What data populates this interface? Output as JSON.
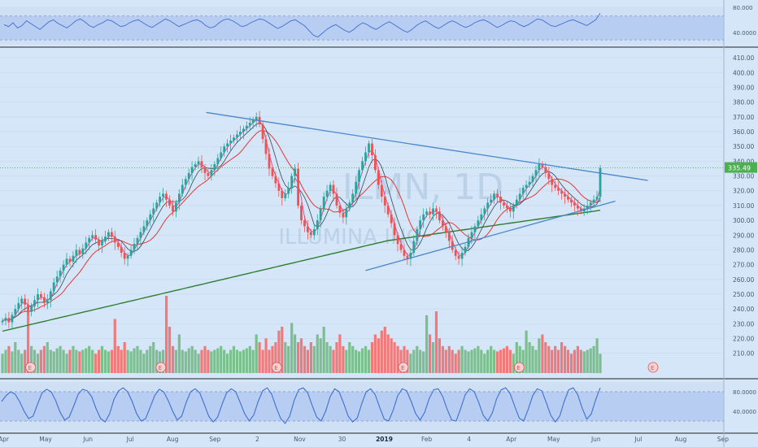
{
  "symbol": "ILMN",
  "interval": "1D",
  "company": "ILLUMINA INC",
  "colors": {
    "background": "#d4e6f8",
    "up": "#26a69a",
    "down": "#ef5350",
    "volume_up": "#7cbf8f",
    "volume_down": "#f07a7a",
    "ma_fast": "#e040a0",
    "ma_slow": "#e53935",
    "ma_200": "#2e7d32",
    "ma_mid": "#37474f",
    "trendline": "#4a86c8",
    "oscillator": "#3f6fd1",
    "band_fill": "#a9bff0",
    "price_badge": "#4caf50",
    "earnings_marker": "#e05050"
  },
  "last_price_label": "335.49",
  "earnings_marker_label": "E",
  "chart_data": [
    {
      "type": "line",
      "title": "",
      "name": "upper-oscillator",
      "ylim": [
        20,
        100
      ],
      "y_ticks": [
        "80.000",
        "40.0000"
      ],
      "band": [
        30,
        80
      ],
      "values": [
        62,
        58,
        66,
        55,
        60,
        70,
        64,
        58,
        52,
        60,
        68,
        72,
        65,
        60,
        55,
        62,
        70,
        74,
        68,
        60,
        56,
        62,
        66,
        72,
        70,
        64,
        58,
        60,
        66,
        70,
        72,
        66,
        60,
        56,
        62,
        68,
        74,
        70,
        64,
        58,
        62,
        66,
        70,
        72,
        68,
        60,
        55,
        58,
        66,
        72,
        74,
        70,
        64,
        58,
        60,
        66,
        70,
        74,
        72,
        66,
        60,
        54,
        58,
        64,
        70,
        72,
        66,
        60,
        50,
        40,
        36,
        44,
        52,
        58,
        62,
        56,
        50,
        46,
        52,
        60,
        66,
        62,
        56,
        52,
        58,
        64,
        68,
        62,
        56,
        50,
        46,
        52,
        60,
        66,
        70,
        64,
        58,
        54,
        60,
        66,
        70,
        66,
        60,
        56,
        60,
        66,
        70,
        72,
        68,
        62,
        56,
        60,
        66,
        70,
        68,
        62,
        58,
        62,
        68,
        74,
        72,
        66,
        60,
        58,
        62,
        66,
        70,
        72,
        68,
        64,
        60,
        66,
        72,
        86
      ]
    },
    {
      "type": "candlestick",
      "title": "",
      "ylim": [
        195,
        415
      ],
      "y_ticks": [
        "410.00",
        "400.00",
        "390.00",
        "380.00",
        "370.00",
        "360.00",
        "350.00",
        "340.00",
        "330.00",
        "320.00",
        "310.00",
        "300.00",
        "290.00",
        "280.00",
        "270.00",
        "260.00",
        "250.00",
        "240.00",
        "230.00",
        "220.00",
        "210.00"
      ],
      "x_ticks": [
        "Apr",
        "May",
        "Jun",
        "Jul",
        "Aug",
        "Sep",
        "2",
        "Nov",
        "30",
        "2019",
        "Feb",
        "4",
        "Apr",
        "May",
        "Jun",
        "Jul",
        "Aug",
        "Sep"
      ],
      "close": [
        232,
        234,
        231,
        236,
        240,
        244,
        247,
        243,
        238,
        242,
        246,
        250,
        248,
        244,
        246,
        252,
        258,
        262,
        266,
        270,
        274,
        272,
        276,
        280,
        277,
        281,
        285,
        288,
        290,
        287,
        283,
        286,
        289,
        292,
        289,
        285,
        282,
        278,
        274,
        276,
        280,
        284,
        288,
        292,
        296,
        300,
        304,
        308,
        312,
        316,
        318,
        314,
        310,
        306,
        312,
        318,
        324,
        328,
        332,
        336,
        338,
        340,
        336,
        332,
        330,
        334,
        338,
        342,
        346,
        350,
        352,
        354,
        356,
        358,
        360,
        362,
        364,
        366,
        368,
        370,
        365,
        355,
        345,
        335,
        330,
        325,
        320,
        315,
        318,
        322,
        330,
        335,
        310,
        300,
        296,
        292,
        290,
        294,
        300,
        308,
        316,
        320,
        324,
        318,
        310,
        305,
        302,
        308,
        312,
        318,
        326,
        334,
        340,
        346,
        352,
        344,
        334,
        324,
        316,
        310,
        304,
        298,
        290,
        284,
        280,
        276,
        274,
        278,
        286,
        294,
        300,
        304,
        306,
        304,
        308,
        306,
        300,
        296,
        292,
        286,
        280,
        276,
        274,
        278,
        282,
        288,
        292,
        296,
        300,
        304,
        308,
        312,
        314,
        318,
        316,
        312,
        310,
        308,
        306,
        310,
        314,
        318,
        322,
        324,
        326,
        330,
        334,
        338,
        336,
        332,
        328,
        324,
        322,
        320,
        318,
        316,
        314,
        312,
        310,
        308,
        306,
        308,
        310,
        312,
        314,
        316,
        335.49
      ],
      "volume_rel": [
        0.25,
        0.3,
        0.35,
        0.28,
        0.4,
        0.3,
        0.25,
        0.3,
        0.8,
        0.35,
        0.3,
        0.25,
        0.3,
        0.35,
        0.4,
        0.3,
        0.28,
        0.32,
        0.35,
        0.3,
        0.25,
        0.3,
        0.35,
        0.3,
        0.28,
        0.3,
        0.32,
        0.35,
        0.3,
        0.25,
        0.3,
        0.35,
        0.3,
        0.28,
        0.3,
        0.7,
        0.35,
        0.3,
        0.4,
        0.3,
        0.28,
        0.32,
        0.35,
        0.3,
        0.25,
        0.3,
        0.35,
        0.4,
        0.3,
        0.28,
        0.3,
        1.0,
        0.6,
        0.35,
        0.3,
        0.5,
        0.3,
        0.28,
        0.32,
        0.35,
        0.3,
        0.25,
        0.3,
        0.35,
        0.3,
        0.28,
        0.3,
        0.32,
        0.35,
        0.3,
        0.25,
        0.3,
        0.35,
        0.3,
        0.28,
        0.3,
        0.32,
        0.35,
        0.3,
        0.5,
        0.4,
        0.3,
        0.45,
        0.3,
        0.35,
        0.4,
        0.55,
        0.6,
        0.4,
        0.35,
        0.65,
        0.5,
        0.4,
        0.45,
        0.35,
        0.3,
        0.4,
        0.35,
        0.5,
        0.45,
        0.6,
        0.4,
        0.35,
        0.3,
        0.4,
        0.5,
        0.35,
        0.3,
        0.4,
        0.35,
        0.3,
        0.28,
        0.32,
        0.35,
        0.3,
        0.4,
        0.5,
        0.45,
        0.55,
        0.6,
        0.5,
        0.45,
        0.4,
        0.35,
        0.3,
        0.35,
        0.3,
        0.25,
        0.3,
        0.35,
        0.3,
        0.28,
        0.75,
        0.5,
        0.4,
        0.8,
        0.45,
        0.35,
        0.3,
        0.35,
        0.3,
        0.25,
        0.3,
        0.35,
        0.3,
        0.28,
        0.3,
        0.32,
        0.35,
        0.3,
        0.25,
        0.3,
        0.35,
        0.3,
        0.28,
        0.3,
        0.32,
        0.35,
        0.3,
        0.25,
        0.4,
        0.35,
        0.3,
        0.55,
        0.4,
        0.35,
        0.3,
        0.45,
        0.5,
        0.4,
        0.35,
        0.3,
        0.35,
        0.3,
        0.4,
        0.35,
        0.3,
        0.25,
        0.3,
        0.35,
        0.3,
        0.28,
        0.3,
        0.32,
        0.35,
        0.45
      ],
      "trendlines": [
        {
          "name": "upper-trendline",
          "from": [
            0.285,
            373
          ],
          "to": [
            0.895,
            327
          ]
        },
        {
          "name": "lower-trendline",
          "from": [
            0.505,
            266
          ],
          "to": [
            0.85,
            313
          ]
        }
      ],
      "earnings_at": [
        0.04,
        0.22,
        0.38,
        0.555,
        0.715,
        0.9
      ]
    },
    {
      "type": "line",
      "title": "",
      "name": "stochastic",
      "ylim": [
        0,
        100
      ],
      "y_ticks": [
        "80.0000",
        "40.0000"
      ],
      "band": [
        20,
        80
      ],
      "values": [
        60,
        72,
        80,
        75,
        60,
        40,
        25,
        30,
        55,
        78,
        85,
        80,
        62,
        38,
        22,
        28,
        50,
        75,
        85,
        82,
        70,
        45,
        25,
        18,
        35,
        65,
        82,
        88,
        80,
        60,
        35,
        20,
        25,
        48,
        72,
        85,
        80,
        62,
        40,
        22,
        30,
        58,
        80,
        86,
        78,
        55,
        30,
        18,
        28,
        55,
        78,
        86,
        80,
        58,
        35,
        20,
        32,
        60,
        82,
        88,
        75,
        48,
        25,
        15,
        30,
        62,
        84,
        88,
        78,
        52,
        28,
        20,
        40,
        70,
        86,
        80,
        56,
        30,
        18,
        26,
        55,
        80,
        86,
        74,
        48,
        24,
        20,
        42,
        72,
        86,
        82,
        60,
        35,
        22,
        38,
        66,
        84,
        86,
        70,
        44,
        22,
        20,
        46,
        74,
        86,
        80,
        58,
        32,
        20,
        36,
        66,
        84,
        88,
        76,
        50,
        26,
        20,
        44,
        72,
        86,
        82,
        58,
        32,
        18,
        30,
        60,
        84,
        88,
        74,
        46,
        24,
        34,
        64,
        88
      ]
    }
  ]
}
